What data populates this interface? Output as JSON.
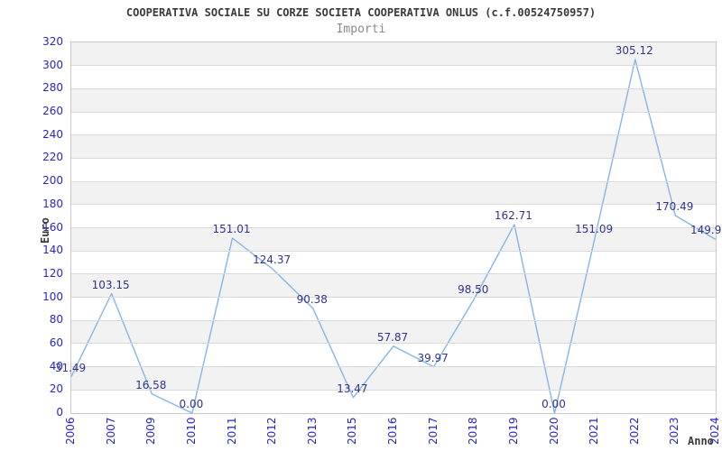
{
  "title": "COOPERATIVA SOCIALE SU CORZE SOCIETA COOPERATIVA ONLUS (c.f.00524750957)",
  "subtitle": "Importi",
  "chart_data": {
    "type": "line",
    "title": "COOPERATIVA SOCIALE SU CORZE SOCIETA COOPERATIVA ONLUS (c.f.00524750957)",
    "subtitle": "Importi",
    "xlabel": "Anno",
    "ylabel": "Euro",
    "categories": [
      "2006",
      "2007",
      "2009",
      "2010",
      "2011",
      "2012",
      "2013",
      "2015",
      "2016",
      "2017",
      "2018",
      "2019",
      "2020",
      "2021",
      "2022",
      "2023",
      "2024"
    ],
    "values": [
      31.49,
      103.15,
      16.58,
      0.0,
      151.01,
      124.37,
      90.38,
      13.47,
      57.87,
      39.97,
      98.5,
      162.71,
      0.0,
      151.09,
      305.12,
      170.49,
      149.9
    ],
    "point_labels": [
      "31.49",
      "103.15",
      "16.58",
      "0.00",
      "151.01",
      "124.37",
      "90.38",
      "13.47",
      "57.87",
      "39.97",
      "98.50",
      "162.71",
      "0.00",
      "151.09",
      "305.12",
      "170.49",
      "149.9"
    ],
    "ylim": [
      0,
      320
    ],
    "y_ticks": [
      0,
      20,
      40,
      60,
      80,
      100,
      120,
      140,
      160,
      180,
      200,
      220,
      240,
      260,
      280,
      300,
      320
    ],
    "grid": "horizontal-bands",
    "legend": "none",
    "colors": {
      "line": "#85b5e8",
      "point_label": "#333390",
      "tick_label": "#2626cc",
      "band": "#f2f2f2",
      "gridline": "#d9d9d9",
      "title": "#3a3a3a",
      "subtitle": "#8a8a8a"
    }
  }
}
